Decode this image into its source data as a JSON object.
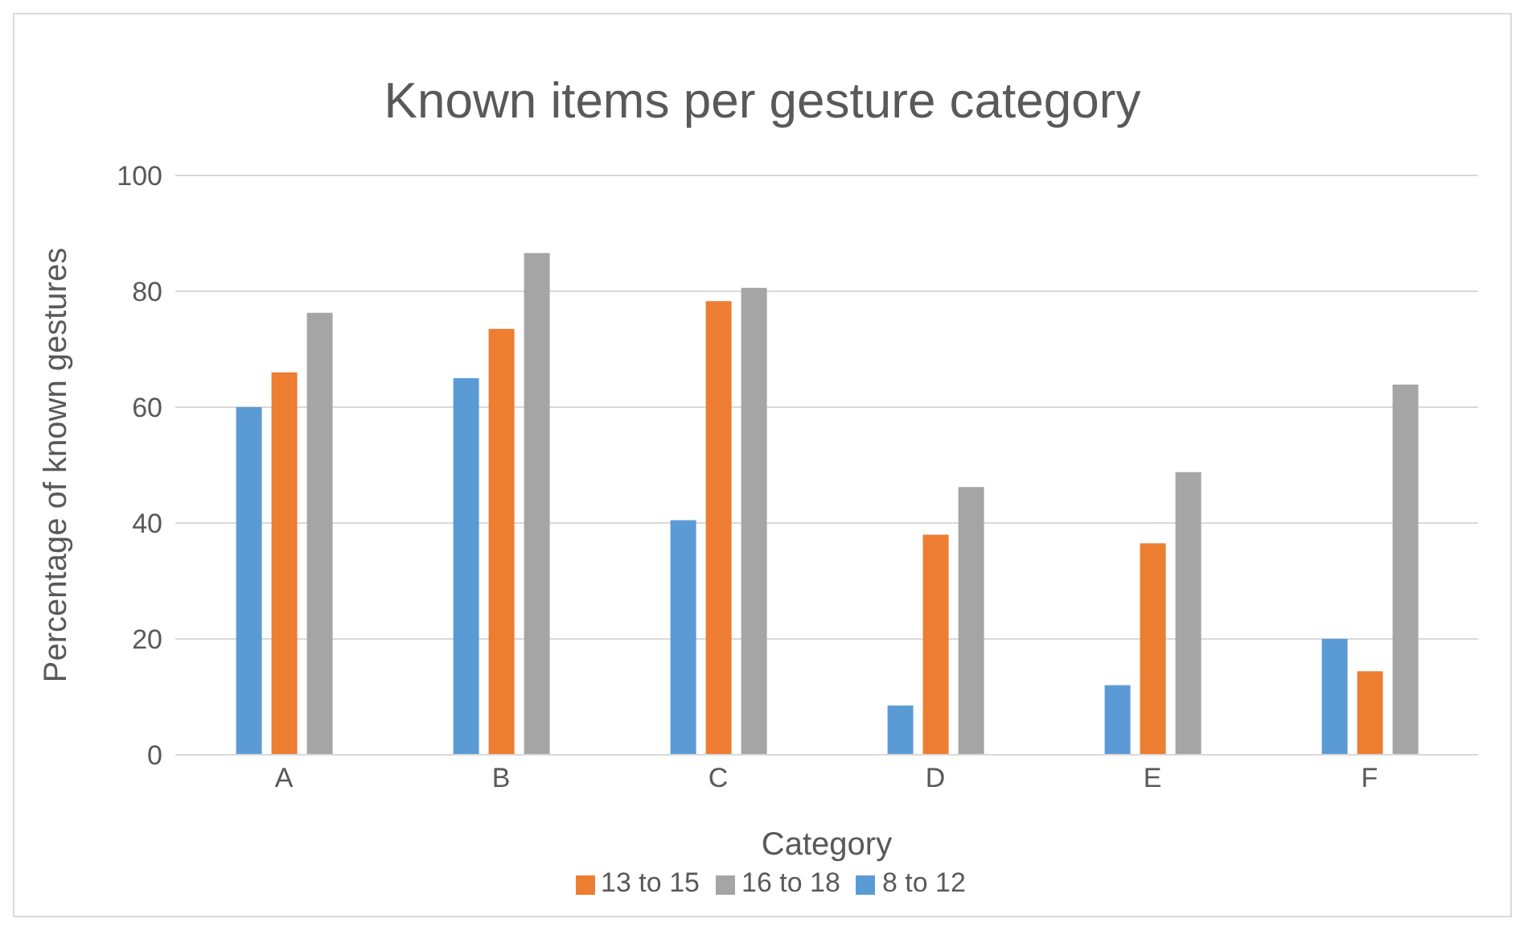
{
  "chart_data": {
    "type": "bar",
    "title": "Known items per gesture category",
    "xlabel": "Category",
    "ylabel": "Percentage of known gestures",
    "categories": [
      "A",
      "B",
      "C",
      "D",
      "E",
      "F"
    ],
    "series": [
      {
        "name": "8 to 12",
        "color": "#5b9bd5",
        "values": [
          60,
          65,
          40.5,
          8.5,
          12,
          20
        ]
      },
      {
        "name": "13 to 15",
        "color": "#ed7d31",
        "values": [
          66,
          73.5,
          78.3,
          38,
          36.5,
          14.4
        ]
      },
      {
        "name": "16 to 18",
        "color": "#a5a5a5",
        "values": [
          76.3,
          86.6,
          80.6,
          46.2,
          48.8,
          63.9
        ]
      }
    ],
    "ylim": [
      0,
      100
    ],
    "yticks": [
      0,
      20,
      40,
      60,
      80,
      100
    ],
    "grid": "y",
    "legend": "bottom"
  }
}
